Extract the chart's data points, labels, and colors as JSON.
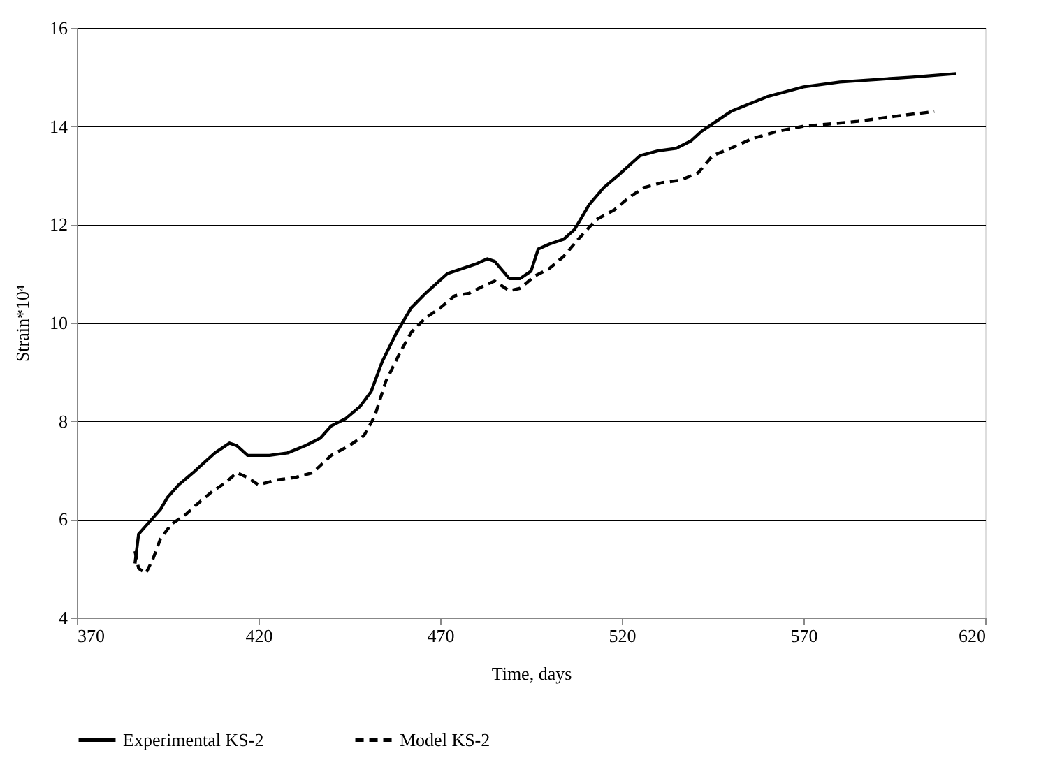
{
  "chart_data": {
    "type": "line",
    "xlabel": "Time, days",
    "ylabel": "Strain*10⁴",
    "xlim": [
      370,
      620
    ],
    "xticks": [
      370,
      420,
      470,
      520,
      570,
      620
    ],
    "ylim": [
      4,
      16
    ],
    "yticks": [
      4,
      6,
      8,
      10,
      12,
      14,
      16
    ],
    "grid": "y",
    "legend": "bottom",
    "marker": "none",
    "series": [
      {
        "name": "Experimental KS-2",
        "color": "#000000",
        "line_style": "solid",
        "x": [
          386,
          387,
          390,
          393,
          395,
          398,
          402,
          405,
          408,
          412,
          414,
          417,
          423,
          428,
          433,
          437,
          440,
          444,
          448,
          451,
          454,
          458,
          462,
          466,
          469,
          472,
          476,
          480,
          483,
          485,
          489,
          492,
          495,
          497,
          500,
          504,
          507,
          511,
          515,
          519,
          522,
          525,
          530,
          535,
          539,
          542,
          545,
          550,
          560,
          570,
          580,
          590,
          600,
          612
        ],
        "values": [
          5.1,
          5.7,
          5.95,
          6.2,
          6.45,
          6.7,
          6.95,
          7.15,
          7.35,
          7.55,
          7.5,
          7.3,
          7.3,
          7.35,
          7.5,
          7.65,
          7.9,
          8.05,
          8.3,
          8.6,
          9.2,
          9.8,
          10.3,
          10.6,
          10.8,
          11.0,
          11.1,
          11.2,
          11.3,
          11.25,
          10.9,
          10.9,
          11.05,
          11.5,
          11.6,
          11.7,
          11.9,
          12.4,
          12.75,
          13.0,
          13.2,
          13.4,
          13.5,
          13.55,
          13.7,
          13.9,
          14.05,
          14.3,
          14.6,
          14.8,
          14.9,
          14.95,
          15.0,
          15.07
        ]
      },
      {
        "name": "Model KS-2",
        "color": "#000000",
        "line_style": "dashed",
        "x": [
          386,
          387,
          389,
          391,
          393,
          396,
          400,
          403,
          407,
          411,
          414,
          417,
          420,
          425,
          430,
          435,
          440,
          445,
          449,
          452,
          455,
          459,
          462,
          466,
          470,
          474,
          478,
          482,
          485,
          489,
          492,
          496,
          500,
          504,
          508,
          513,
          518,
          522,
          526,
          531,
          536,
          541,
          545,
          550,
          556,
          563,
          570,
          578,
          585,
          595,
          606
        ],
        "values": [
          5.35,
          5.0,
          4.9,
          5.2,
          5.6,
          5.9,
          6.1,
          6.3,
          6.55,
          6.75,
          6.95,
          6.85,
          6.7,
          6.8,
          6.85,
          6.95,
          7.3,
          7.5,
          7.7,
          8.1,
          8.8,
          9.4,
          9.8,
          10.1,
          10.3,
          10.55,
          10.6,
          10.75,
          10.85,
          10.65,
          10.7,
          10.95,
          11.1,
          11.35,
          11.7,
          12.1,
          12.3,
          12.55,
          12.75,
          12.85,
          12.9,
          13.05,
          13.4,
          13.55,
          13.75,
          13.9,
          14.0,
          14.05,
          14.1,
          14.2,
          14.3
        ]
      }
    ]
  }
}
